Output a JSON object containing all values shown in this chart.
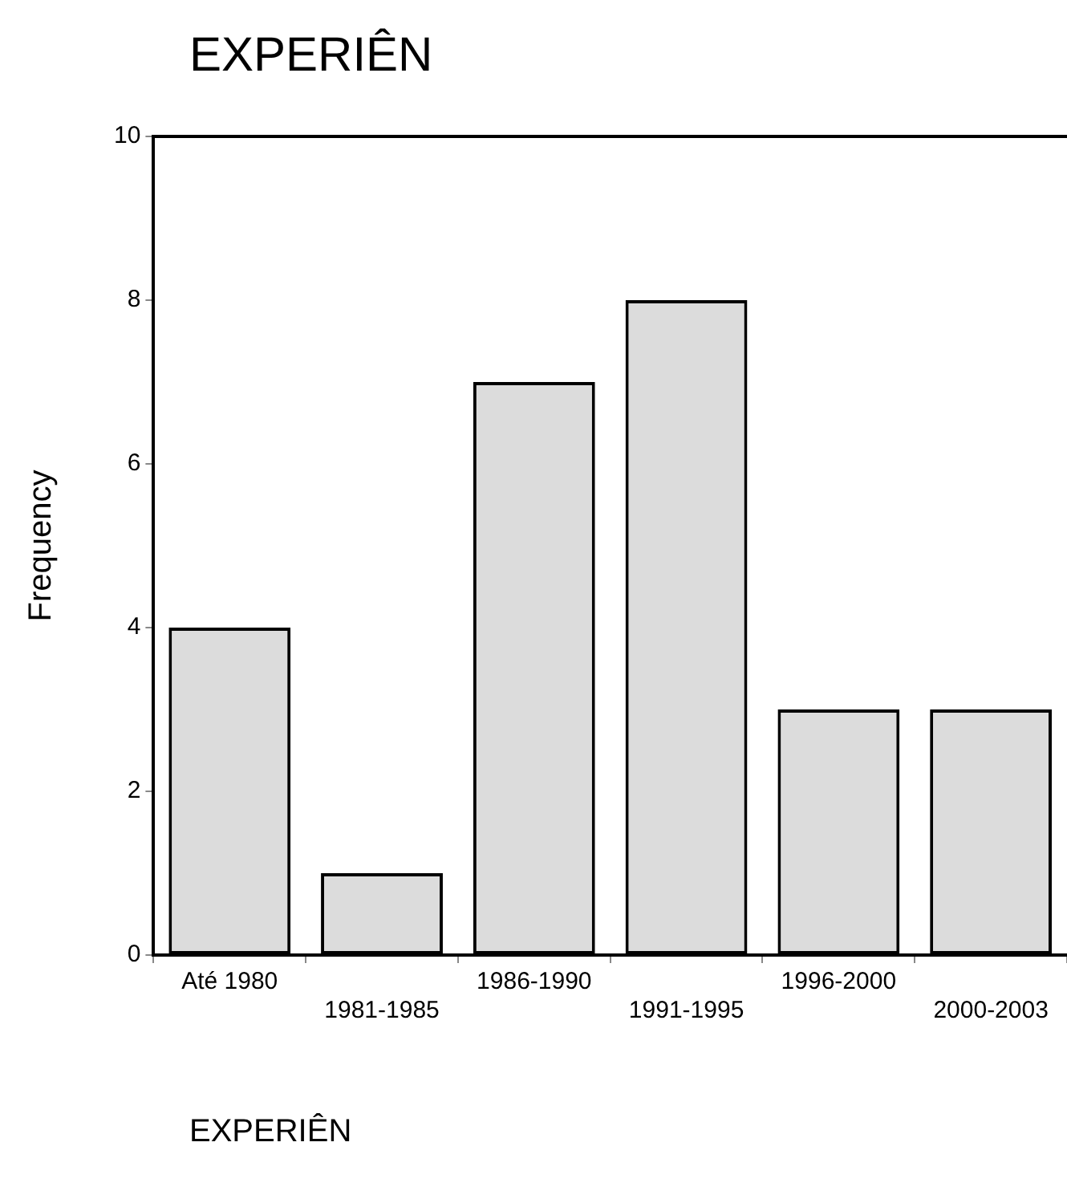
{
  "chart_data": {
    "type": "bar",
    "title": "EXPERIÊN",
    "xlabel": "EXPERIÊN",
    "ylabel": "Frequency",
    "categories": [
      "Até 1980",
      "1981-1985",
      "1986-1990",
      "1991-1995",
      "1996-2000",
      "2000-2003"
    ],
    "values": [
      4,
      1,
      7,
      8,
      3,
      3
    ],
    "color": "#dcdcdc",
    "ylim": [
      0,
      10
    ],
    "yticks": [
      0,
      2,
      4,
      6,
      8,
      10
    ],
    "grid": false,
    "legend": false
  }
}
